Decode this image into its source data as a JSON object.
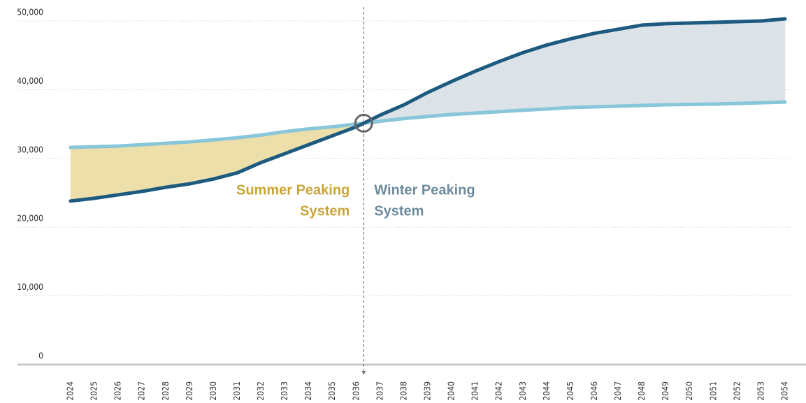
{
  "chart_data": {
    "type": "line",
    "categories": [
      "2024",
      "2025",
      "2026",
      "2027",
      "2028",
      "2029",
      "2030",
      "2031",
      "2032",
      "2033",
      "2034",
      "2035",
      "2036",
      "2037",
      "2038",
      "2039",
      "2040",
      "2041",
      "2042",
      "2043",
      "2044",
      "2045",
      "2046",
      "2047",
      "2048",
      "2049",
      "2050",
      "2051",
      "2052",
      "2053",
      "2054"
    ],
    "series": [
      {
        "color": "#1d5a80",
        "values": [
          23800,
          24200,
          24700,
          25200,
          25800,
          26300,
          27000,
          27900,
          29400,
          30700,
          32000,
          33300,
          34600,
          36300,
          37800,
          39600,
          41200,
          42700,
          44100,
          45400,
          46500,
          47400,
          48200,
          48800,
          49400,
          49600,
          49700,
          49800,
          49900,
          50000,
          50300
        ]
      },
      {
        "color": "#88c6d9",
        "values": [
          31600,
          31700,
          31800,
          32000,
          32200,
          32400,
          32700,
          33000,
          33400,
          33900,
          34300,
          34600,
          35000,
          35400,
          35800,
          36100,
          36400,
          36600,
          36800,
          37000,
          37200,
          37400,
          37500,
          37600,
          37700,
          37800,
          37850,
          37900,
          38000,
          38100,
          38200
        ]
      }
    ],
    "between_fill": [
      "#eddfa9",
      "#dbe2e8"
    ],
    "ylim": [
      0,
      50000
    ],
    "yticks": [
      0,
      {
        "value": 10000,
        "label": "10,000"
      },
      {
        "value": 20000,
        "label": "20,000"
      },
      {
        "value": 30000,
        "label": "30,000"
      },
      {
        "value": 40000,
        "label": "40,000"
      },
      {
        "value": 50000,
        "label": "50,000"
      }
    ],
    "grid": true,
    "annotations": [
      {
        "lines": [
          "Summer Peaking",
          "System"
        ],
        "color": "#c9a534",
        "side": "left"
      },
      {
        "lines": [
          "Winter Peaking",
          "System"
        ],
        "color": "#6d8a9c",
        "side": "right"
      }
    ]
  }
}
